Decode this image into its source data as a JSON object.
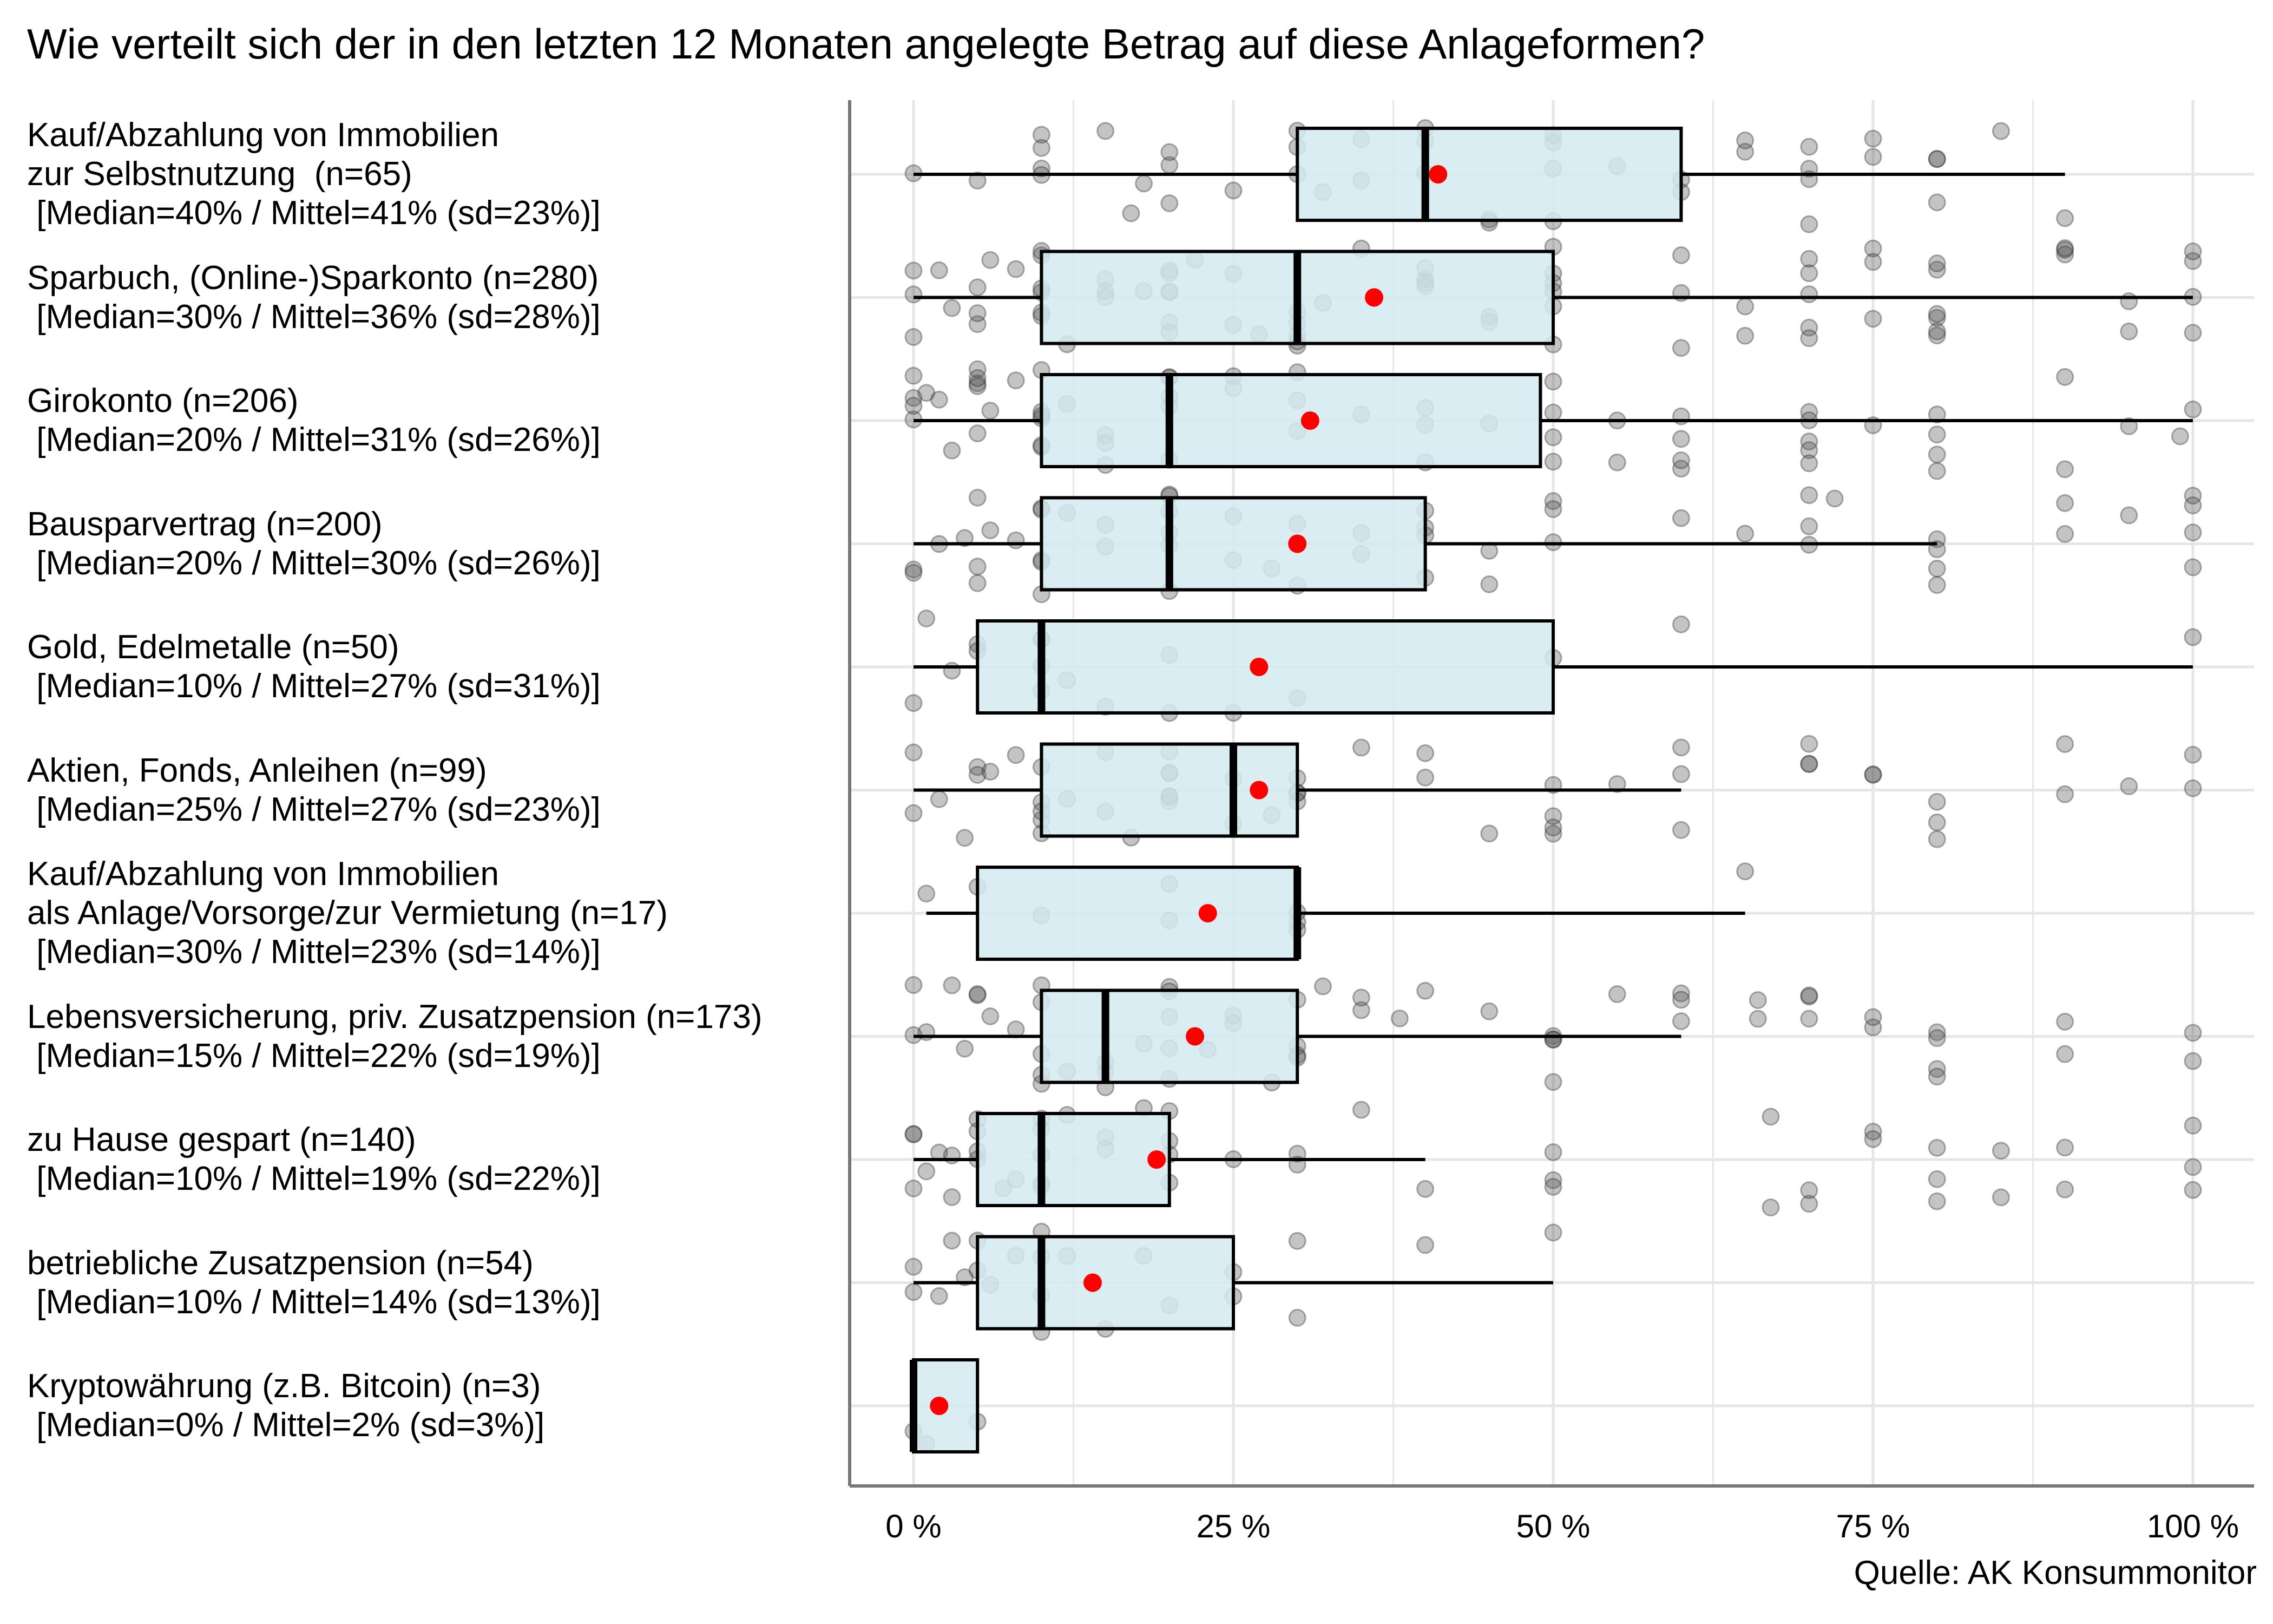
{
  "chart_data": {
    "type": "boxplot",
    "title": "Wie verteilt sich der in den letzten 12 Monaten angelegte Betrag auf diese Anlageformen?",
    "source": "Quelle: AK Konsummonitor",
    "xlim": [
      0,
      100
    ],
    "x_ticks": [
      0,
      25,
      50,
      75,
      100
    ],
    "x_tick_labels": [
      "0 %",
      "25 %",
      "50 %",
      "75 %",
      "100 %"
    ],
    "grid": true,
    "colors": {
      "box_fill": "#d4eaf1",
      "mean_point": "#ff0000",
      "jitter_point": "#555555"
    },
    "categories": [
      {
        "label_lines": [
          "Kauf/Abzahlung von Immobilien",
          "zur Selbstnutzung  (n=65)",
          " [Median=40% / Mittel=41% (sd=23%)]"
        ],
        "q1": 30,
        "median": 40,
        "q3": 60,
        "whisker_low": 0,
        "whisker_high": 90,
        "mean": 41,
        "points": [
          0,
          5,
          10,
          10,
          10,
          10,
          15,
          17,
          18,
          20,
          20,
          20,
          25,
          30,
          30,
          30,
          32,
          35,
          35,
          40,
          40,
          40,
          45,
          45,
          50,
          50,
          50,
          50,
          55,
          60,
          60,
          65,
          65,
          70,
          70,
          70,
          70,
          75,
          75,
          80,
          80,
          80,
          85,
          90
        ]
      },
      {
        "label_lines": [
          "Sparbuch, (Online-)Sparkonto (n=280)",
          " [Median=30% / Mittel=36% (sd=28%)]"
        ],
        "q1": 10,
        "median": 30,
        "q3": 50,
        "whisker_low": 0,
        "whisker_high": 100,
        "mean": 36,
        "points": [
          0,
          0,
          0,
          2,
          3,
          5,
          5,
          5,
          6,
          8,
          10,
          10,
          10,
          10,
          10,
          10,
          12,
          15,
          15,
          15,
          18,
          20,
          20,
          20,
          20,
          20,
          20,
          22,
          25,
          25,
          27,
          30,
          30,
          30,
          30,
          30,
          32,
          35,
          40,
          40,
          40,
          40,
          45,
          45,
          50,
          50,
          50,
          50,
          50,
          50,
          60,
          60,
          60,
          65,
          65,
          70,
          70,
          70,
          70,
          70,
          75,
          75,
          75,
          80,
          80,
          80,
          80,
          80,
          80,
          90,
          90,
          90,
          95,
          95,
          100,
          100,
          100,
          100
        ]
      },
      {
        "label_lines": [
          "Girokonto (n=206)",
          " [Median=20% / Mittel=31% (sd=26%)]"
        ],
        "q1": 10,
        "median": 20,
        "q3": 49,
        "whisker_low": 0,
        "whisker_high": 100,
        "mean": 31,
        "points": [
          0,
          0,
          0,
          0,
          1,
          2,
          3,
          5,
          5,
          5,
          5,
          5,
          6,
          8,
          10,
          10,
          10,
          10,
          10,
          10,
          12,
          15,
          15,
          15,
          20,
          20,
          20,
          20,
          20,
          25,
          25,
          30,
          30,
          30,
          35,
          40,
          40,
          40,
          45,
          50,
          50,
          50,
          50,
          55,
          55,
          60,
          60,
          60,
          60,
          70,
          70,
          70,
          70,
          70,
          75,
          80,
          80,
          80,
          80,
          90,
          90,
          95,
          99,
          100
        ]
      },
      {
        "label_lines": [
          "Bausparvertrag (n=200)",
          " [Median=20% / Mittel=30% (sd=26%)]"
        ],
        "q1": 10,
        "median": 20,
        "q3": 40,
        "whisker_low": 0,
        "whisker_high": 80,
        "mean": 30,
        "points": [
          0,
          0,
          2,
          4,
          5,
          5,
          5,
          6,
          8,
          10,
          10,
          10,
          10,
          10,
          12,
          15,
          15,
          20,
          20,
          20,
          20,
          20,
          20,
          25,
          25,
          28,
          30,
          30,
          35,
          35,
          40,
          40,
          40,
          40,
          45,
          45,
          50,
          50,
          50,
          60,
          65,
          70,
          70,
          70,
          72,
          80,
          80,
          80,
          80,
          90,
          90,
          95,
          100,
          100,
          100,
          100
        ]
      },
      {
        "label_lines": [
          "Gold, Edelmetalle (n=50)",
          " [Median=10% / Mittel=27% (sd=31%)]"
        ],
        "q1": 5,
        "median": 10,
        "q3": 50,
        "whisker_low": 0,
        "whisker_high": 100,
        "mean": 27,
        "points": [
          0,
          1,
          3,
          5,
          5,
          10,
          10,
          10,
          10,
          12,
          15,
          20,
          20,
          25,
          30,
          50,
          60,
          100
        ]
      },
      {
        "label_lines": [
          "Aktien, Fonds, Anleihen (n=99)",
          " [Median=25% / Mittel=27% (sd=23%)]"
        ],
        "q1": 10,
        "median": 25,
        "q3": 30,
        "whisker_low": 0,
        "whisker_high": 60,
        "mean": 27,
        "points": [
          0,
          0,
          2,
          4,
          5,
          5,
          6,
          8,
          10,
          10,
          10,
          10,
          10,
          12,
          15,
          15,
          17,
          20,
          20,
          20,
          20,
          20,
          20,
          25,
          25,
          28,
          30,
          30,
          30,
          30,
          35,
          40,
          40,
          45,
          50,
          50,
          50,
          50,
          55,
          60,
          60,
          60,
          70,
          70,
          70,
          75,
          75,
          80,
          80,
          80,
          90,
          90,
          95,
          100,
          100
        ]
      },
      {
        "label_lines": [
          "Kauf/Abzahlung von Immobilien",
          "als Anlage/Vorsorge/zur Vermietung (n=17)",
          " [Median=30% / Mittel=23% (sd=14%)]"
        ],
        "q1": 5,
        "median": 30,
        "q3": 30,
        "whisker_low": 1,
        "whisker_high": 65,
        "mean": 23,
        "points": [
          1,
          5,
          10,
          20,
          20,
          30,
          30,
          30,
          65
        ]
      },
      {
        "label_lines": [
          "Lebensversicherung, priv. Zusatzpension (n=173)",
          " [Median=15% / Mittel=22% (sd=19%)]"
        ],
        "q1": 10,
        "median": 15,
        "q3": 30,
        "whisker_low": 0,
        "whisker_high": 60,
        "mean": 22,
        "points": [
          0,
          0,
          1,
          3,
          4,
          5,
          5,
          6,
          8,
          10,
          10,
          10,
          10,
          10,
          12,
          15,
          15,
          15,
          18,
          20,
          20,
          20,
          20,
          20,
          23,
          25,
          25,
          28,
          30,
          30,
          30,
          30,
          32,
          35,
          35,
          38,
          40,
          45,
          50,
          50,
          50,
          50,
          55,
          60,
          60,
          60,
          66,
          66,
          70,
          70,
          70,
          75,
          75,
          80,
          80,
          80,
          80,
          90,
          90,
          100,
          100
        ]
      },
      {
        "label_lines": [
          "zu Hause gespart (n=140)",
          " [Median=10% / Mittel=19% (sd=22%)]"
        ],
        "q1": 5,
        "median": 10,
        "q3": 20,
        "whisker_low": 0,
        "whisker_high": 40,
        "mean": 19,
        "points": [
          0,
          0,
          0,
          1,
          2,
          3,
          3,
          5,
          5,
          5,
          5,
          7,
          8,
          10,
          10,
          10,
          10,
          10,
          12,
          15,
          15,
          18,
          20,
          20,
          20,
          20,
          25,
          30,
          30,
          35,
          40,
          50,
          50,
          50,
          67,
          67,
          70,
          70,
          75,
          75,
          80,
          80,
          80,
          85,
          85,
          90,
          90,
          100,
          100,
          100
        ]
      },
      {
        "label_lines": [
          "betriebliche Zusatzpension (n=54)",
          " [Median=10% / Mittel=14% (sd=13%)]"
        ],
        "q1": 5,
        "median": 10,
        "q3": 25,
        "whisker_low": 0,
        "whisker_high": 50,
        "mean": 14,
        "points": [
          0,
          0,
          2,
          3,
          4,
          5,
          5,
          6,
          8,
          10,
          10,
          10,
          10,
          12,
          15,
          18,
          20,
          25,
          25,
          30,
          30,
          40,
          50
        ]
      },
      {
        "label_lines": [
          "Kryptowährung (z.B. Bitcoin) (n=3)",
          " [Median=0% / Mittel=2% (sd=3%)]"
        ],
        "q1": 0,
        "median": 0,
        "q3": 5,
        "whisker_low": 0,
        "whisker_high": 5,
        "mean": 2,
        "points": [
          0,
          1,
          5
        ]
      }
    ]
  }
}
